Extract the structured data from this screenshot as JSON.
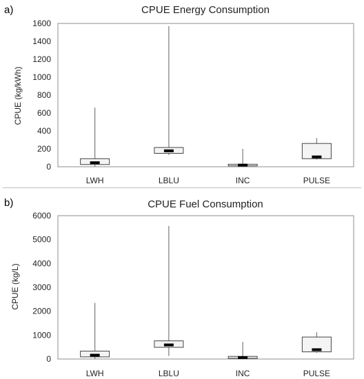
{
  "chart_data": [
    {
      "type": "box",
      "panel_label": "a)",
      "title": "CPUE Energy Consumption",
      "xlabel": "",
      "ylabel": "CPUE (kg/kWh)",
      "ylim": [
        0,
        1600
      ],
      "yticks": [
        "0",
        "200",
        "400",
        "600",
        "800",
        "1000",
        "1200",
        "1400",
        "1600"
      ],
      "grid": false,
      "categories": [
        "LWH",
        "LBLU",
        "INC",
        "PULSE"
      ],
      "boxes": [
        {
          "category": "LWH",
          "min": 0,
          "q1": 25,
          "median": 45,
          "q3": 90,
          "max": 660
        },
        {
          "category": "LBLU",
          "min": 130,
          "q1": 150,
          "median": 178,
          "q3": 215,
          "max": 1570
        },
        {
          "category": "INC",
          "min": 0,
          "q1": 10,
          "median": 18,
          "q3": 28,
          "max": 200
        },
        {
          "category": "PULSE",
          "min": 80,
          "q1": 90,
          "median": 110,
          "q3": 260,
          "max": 320
        }
      ]
    },
    {
      "type": "box",
      "panel_label": "b)",
      "title": "CPUE Fuel Consumption",
      "xlabel": "",
      "ylabel": "CPUE (kg/L)",
      "ylim": [
        0,
        6000
      ],
      "yticks": [
        "0",
        "1000",
        "2000",
        "3000",
        "4000",
        "5000",
        "6000"
      ],
      "grid": false,
      "categories": [
        "LWH",
        "LBLU",
        "INC",
        "PULSE"
      ],
      "boxes": [
        {
          "category": "LWH",
          "min": 0,
          "q1": 90,
          "median": 160,
          "q3": 330,
          "max": 2350
        },
        {
          "category": "LBLU",
          "min": 130,
          "q1": 490,
          "median": 590,
          "q3": 760,
          "max": 5570
        },
        {
          "category": "INC",
          "min": 0,
          "q1": 30,
          "median": 60,
          "q3": 110,
          "max": 720
        },
        {
          "category": "PULSE",
          "min": 260,
          "q1": 300,
          "median": 390,
          "q3": 920,
          "max": 1120
        }
      ]
    }
  ]
}
